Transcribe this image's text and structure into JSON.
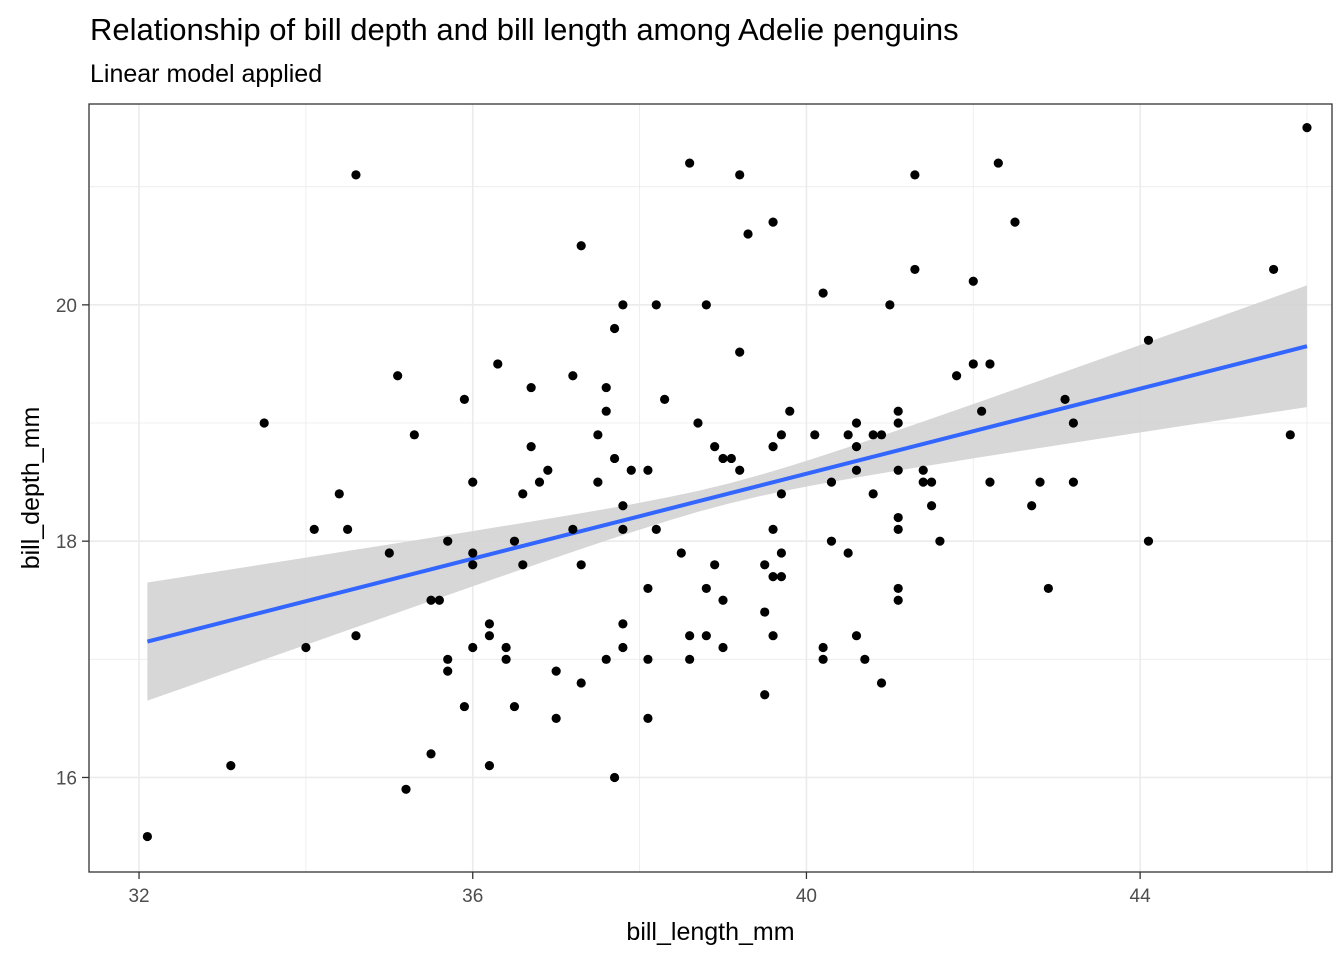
{
  "chart_data": {
    "type": "scatter",
    "title": "Relationship of bill depth and bill length among Adelie penguins",
    "subtitle": "Linear model applied",
    "xlabel": "bill_length_mm",
    "ylabel": "bill_depth_mm",
    "xlim": [
      31.4,
      46.3
    ],
    "ylim": [
      15.2,
      21.7
    ],
    "x_ticks": [
      32,
      36,
      40,
      44
    ],
    "y_ticks": [
      16,
      18,
      20
    ],
    "grid": true,
    "colors": {
      "points": "#000000",
      "fit_line": "#3366FF",
      "ribbon": "#D3D3D3",
      "panel_border": "#333333",
      "grid": "#EBEBEB"
    },
    "fit": {
      "method": "lm",
      "x": [
        32.1,
        46.0
      ],
      "y": [
        17.15,
        19.65
      ],
      "ci_lower": [
        16.65,
        19.12
      ],
      "ci_upper": [
        17.65,
        20.15
      ]
    },
    "points": [
      [
        32.1,
        15.5
      ],
      [
        33.1,
        16.1
      ],
      [
        33.5,
        19.0
      ],
      [
        34.0,
        17.1
      ],
      [
        34.1,
        18.1
      ],
      [
        34.4,
        18.4
      ],
      [
        34.5,
        18.1
      ],
      [
        34.6,
        21.1
      ],
      [
        34.6,
        17.2
      ],
      [
        35.0,
        17.9
      ],
      [
        35.1,
        19.4
      ],
      [
        35.2,
        15.9
      ],
      [
        35.3,
        18.9
      ],
      [
        35.5,
        17.5
      ],
      [
        35.5,
        16.2
      ],
      [
        35.6,
        17.5
      ],
      [
        35.7,
        18.0
      ],
      [
        35.7,
        17.0
      ],
      [
        35.7,
        16.9
      ],
      [
        35.9,
        19.2
      ],
      [
        35.9,
        16.6
      ],
      [
        36.0,
        18.5
      ],
      [
        36.0,
        17.9
      ],
      [
        36.0,
        17.8
      ],
      [
        36.0,
        17.1
      ],
      [
        36.2,
        17.3
      ],
      [
        36.2,
        17.2
      ],
      [
        36.2,
        16.1
      ],
      [
        36.3,
        19.5
      ],
      [
        36.4,
        17.1
      ],
      [
        36.4,
        17.0
      ],
      [
        36.5,
        18.0
      ],
      [
        36.5,
        16.6
      ],
      [
        36.6,
        18.4
      ],
      [
        36.6,
        17.8
      ],
      [
        36.7,
        19.3
      ],
      [
        36.7,
        18.8
      ],
      [
        36.8,
        18.5
      ],
      [
        36.9,
        18.6
      ],
      [
        37.0,
        16.9
      ],
      [
        37.0,
        16.5
      ],
      [
        37.2,
        19.4
      ],
      [
        37.2,
        18.1
      ],
      [
        37.3,
        20.5
      ],
      [
        37.3,
        17.8
      ],
      [
        37.3,
        16.8
      ],
      [
        37.5,
        18.9
      ],
      [
        37.5,
        18.5
      ],
      [
        37.6,
        19.3
      ],
      [
        37.6,
        19.1
      ],
      [
        37.6,
        17.0
      ],
      [
        37.7,
        19.8
      ],
      [
        37.7,
        18.7
      ],
      [
        37.7,
        16.0
      ],
      [
        37.8,
        20.0
      ],
      [
        37.8,
        18.3
      ],
      [
        37.8,
        18.1
      ],
      [
        37.8,
        17.3
      ],
      [
        37.8,
        17.1
      ],
      [
        37.9,
        18.6
      ],
      [
        38.1,
        18.6
      ],
      [
        38.1,
        17.6
      ],
      [
        38.1,
        17.0
      ],
      [
        38.1,
        16.5
      ],
      [
        38.2,
        20.0
      ],
      [
        38.2,
        18.1
      ],
      [
        38.3,
        19.2
      ],
      [
        38.5,
        17.9
      ],
      [
        38.6,
        21.2
      ],
      [
        38.6,
        17.2
      ],
      [
        38.6,
        17.0
      ],
      [
        38.7,
        19.0
      ],
      [
        38.8,
        20.0
      ],
      [
        38.8,
        17.6
      ],
      [
        38.8,
        17.2
      ],
      [
        38.9,
        18.8
      ],
      [
        38.9,
        17.8
      ],
      [
        39.0,
        18.7
      ],
      [
        39.0,
        17.5
      ],
      [
        39.0,
        17.1
      ],
      [
        39.1,
        18.7
      ],
      [
        39.2,
        21.1
      ],
      [
        39.2,
        19.6
      ],
      [
        39.2,
        18.6
      ],
      [
        39.3,
        20.6
      ],
      [
        39.5,
        17.8
      ],
      [
        39.5,
        17.4
      ],
      [
        39.5,
        16.7
      ],
      [
        39.6,
        20.7
      ],
      [
        39.6,
        18.8
      ],
      [
        39.6,
        18.1
      ],
      [
        39.6,
        17.7
      ],
      [
        39.6,
        17.2
      ],
      [
        39.7,
        18.9
      ],
      [
        39.7,
        18.4
      ],
      [
        39.7,
        17.9
      ],
      [
        39.7,
        17.7
      ],
      [
        39.8,
        19.1
      ],
      [
        40.1,
        18.9
      ],
      [
        40.2,
        20.1
      ],
      [
        40.2,
        17.1
      ],
      [
        40.2,
        17.0
      ],
      [
        40.3,
        18.5
      ],
      [
        40.3,
        18.0
      ],
      [
        40.5,
        18.9
      ],
      [
        40.5,
        17.9
      ],
      [
        40.6,
        19.0
      ],
      [
        40.6,
        18.8
      ],
      [
        40.6,
        18.6
      ],
      [
        40.6,
        17.2
      ],
      [
        40.7,
        17.0
      ],
      [
        40.8,
        18.9
      ],
      [
        40.8,
        18.4
      ],
      [
        40.9,
        18.9
      ],
      [
        40.9,
        16.8
      ],
      [
        41.0,
        20.0
      ],
      [
        41.1,
        19.1
      ],
      [
        41.1,
        19.0
      ],
      [
        41.1,
        18.6
      ],
      [
        41.1,
        18.2
      ],
      [
        41.1,
        18.1
      ],
      [
        41.1,
        17.6
      ],
      [
        41.1,
        17.5
      ],
      [
        41.3,
        21.1
      ],
      [
        41.3,
        20.3
      ],
      [
        41.4,
        18.6
      ],
      [
        41.4,
        18.5
      ],
      [
        41.5,
        18.5
      ],
      [
        41.5,
        18.3
      ],
      [
        41.6,
        18.0
      ],
      [
        41.8,
        19.4
      ],
      [
        42.0,
        20.2
      ],
      [
        42.0,
        19.5
      ],
      [
        42.1,
        19.1
      ],
      [
        42.2,
        19.5
      ],
      [
        42.2,
        18.5
      ],
      [
        42.3,
        21.2
      ],
      [
        42.5,
        20.7
      ],
      [
        42.7,
        18.3
      ],
      [
        42.8,
        18.5
      ],
      [
        42.9,
        17.6
      ],
      [
        43.1,
        19.2
      ],
      [
        43.2,
        19.0
      ],
      [
        43.2,
        18.5
      ],
      [
        44.1,
        19.7
      ],
      [
        44.1,
        18.0
      ],
      [
        45.6,
        20.3
      ],
      [
        45.8,
        18.9
      ],
      [
        46.0,
        21.5
      ]
    ]
  }
}
